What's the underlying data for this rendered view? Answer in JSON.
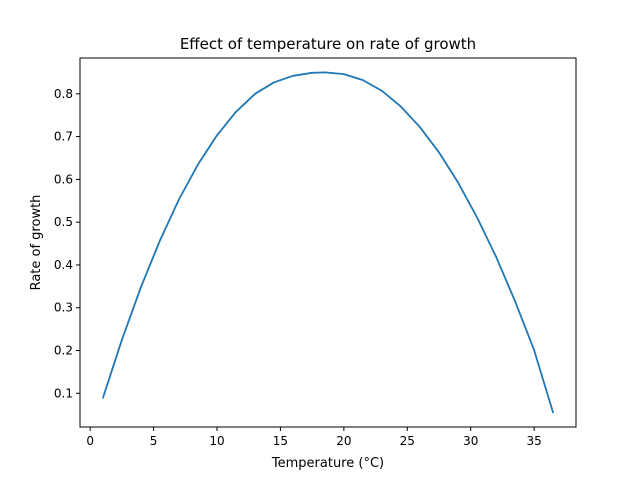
{
  "chart_data": {
    "type": "line",
    "title": "Effect of temperature on rate of growth",
    "xlabel": "Temperature (°C)",
    "ylabel": "Rate of growth",
    "xlim": [
      -0.8,
      38.3
    ],
    "ylim": [
      0.0212,
      0.8837
    ],
    "xticks": [
      0,
      5,
      10,
      15,
      20,
      25,
      30,
      35
    ],
    "yticks": [
      0.1,
      0.2,
      0.3,
      0.4,
      0.5,
      0.6,
      0.7,
      0.8
    ],
    "grid": false,
    "line_color": "#1f77b4",
    "series": [
      {
        "x": [
          1.0,
          2.5,
          4.0,
          5.5,
          7.0,
          8.5,
          10.0,
          11.5,
          13.0,
          14.5,
          16.0,
          17.5,
          18.5,
          20.0,
          21.5,
          23.0,
          24.5,
          26.0,
          27.5,
          29.0,
          30.5,
          32.0,
          33.5,
          35.0,
          36.5
        ],
        "values": [
          0.088,
          0.225,
          0.348,
          0.457,
          0.553,
          0.635,
          0.703,
          0.758,
          0.8,
          0.827,
          0.842,
          0.849,
          0.85,
          0.846,
          0.832,
          0.807,
          0.77,
          0.722,
          0.663,
          0.593,
          0.511,
          0.419,
          0.315,
          0.201,
          0.054
        ]
      }
    ]
  }
}
